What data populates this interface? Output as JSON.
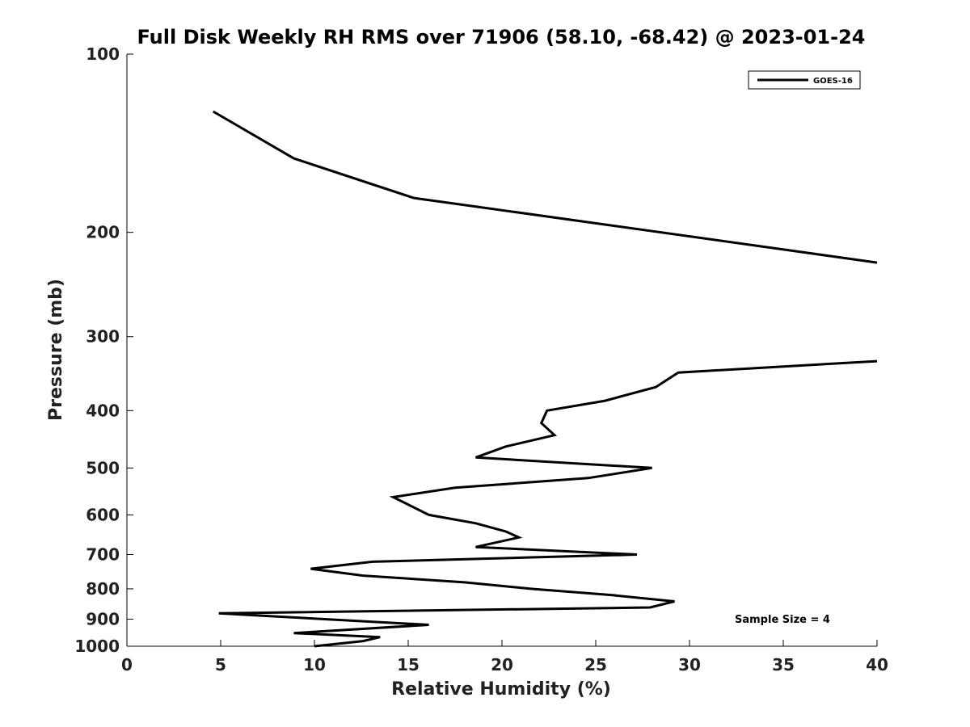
{
  "chart_data": {
    "type": "line",
    "title": "Full Disk Weekly RH RMS over 71906 (58.10, -68.42) @ 2023-01-24",
    "xlabel": "Relative Humidity (%)",
    "ylabel": "Pressure (mb)",
    "xlim": [
      0,
      40
    ],
    "ylim": [
      100,
      1000
    ],
    "yscale": "log",
    "ydirection": "reverse",
    "xticks": [
      "0",
      "5",
      "10",
      "15",
      "20",
      "25",
      "30",
      "35",
      "40"
    ],
    "yticks": [
      "100",
      "200",
      "300",
      "400",
      "500",
      "600",
      "700",
      "800",
      "900",
      "1000"
    ],
    "grid": false,
    "legend_position": "top-right",
    "annotation": "Sample Size = 4",
    "series": [
      {
        "name": "GOES-16",
        "color": "#000000",
        "segments": [
          [
            [
              4.6,
              125
            ],
            [
              8.9,
              150
            ],
            [
              15.3,
              175
            ],
            [
              26,
              195
            ],
            [
              40,
              225
            ]
          ],
          [
            [
              40,
              330
            ],
            [
              29.4,
              345
            ],
            [
              28.2,
              365
            ],
            [
              25.5,
              385
            ],
            [
              22.4,
              400
            ],
            [
              22.1,
              420
            ],
            [
              22.8,
              440
            ],
            [
              20.2,
              460
            ],
            [
              18.6,
              480
            ],
            [
              28,
              500
            ],
            [
              24.6,
              520
            ],
            [
              17.5,
              540
            ],
            [
              14.2,
              560
            ],
            [
              16.1,
              600
            ],
            [
              18.6,
              620
            ],
            [
              20.2,
              640
            ],
            [
              20.9,
              655
            ],
            [
              18.6,
              680
            ],
            [
              27.2,
              700
            ],
            [
              13.1,
              720
            ],
            [
              9.8,
              740
            ],
            [
              12.6,
              760
            ],
            [
              18,
              780
            ],
            [
              21.6,
              800
            ],
            [
              25.9,
              820
            ],
            [
              29.2,
              840
            ],
            [
              27.9,
              860
            ],
            [
              4.9,
              880
            ],
            [
              16.1,
              920
            ],
            [
              8.9,
              950
            ],
            [
              13.5,
              965
            ],
            [
              12.6,
              980
            ],
            [
              10,
              1000
            ]
          ]
        ]
      }
    ]
  }
}
